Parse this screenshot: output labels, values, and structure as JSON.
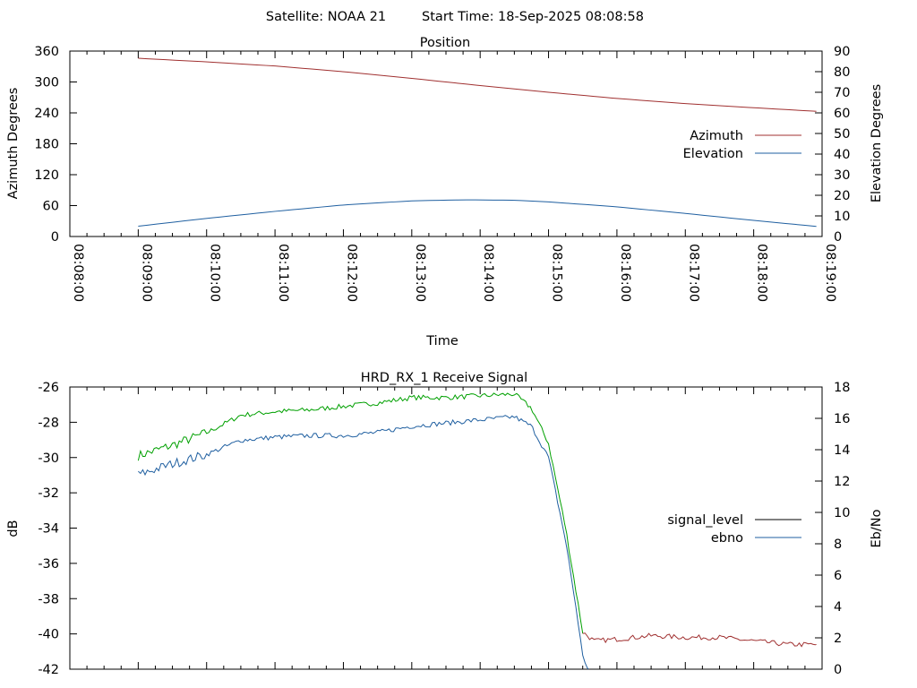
{
  "header": {
    "satellite": "Satellite: NOAA 21",
    "start_time": "Start Time: 18-Sep-2025 08:08:58"
  },
  "chart_data": [
    {
      "type": "line",
      "title": "Position",
      "xlabel": "Time",
      "ylabel": "Azimuth Degrees",
      "y2label": "Elevation Degrees",
      "xlim": [
        "08:08:00",
        "08:19:00"
      ],
      "ylim": [
        0,
        360
      ],
      "y2lim": [
        0,
        90
      ],
      "xticks": [
        "08:08:00",
        "08:09:00",
        "08:10:00",
        "08:11:00",
        "08:12:00",
        "08:13:00",
        "08:14:00",
        "08:15:00",
        "08:16:00",
        "08:17:00",
        "08:18:00",
        "08:19:00"
      ],
      "yticks": [
        "0",
        "60",
        "120",
        "180",
        "240",
        "300",
        "360"
      ],
      "y2ticks": [
        "0",
        "10",
        "20",
        "30",
        "40",
        "50",
        "60",
        "70",
        "80",
        "90"
      ],
      "legend_position": "right",
      "series": [
        {
          "name": "Azimuth",
          "axis": "y",
          "color": "#a03030",
          "x": [
            "08:09:00",
            "08:10:00",
            "08:11:00",
            "08:12:00",
            "08:13:00",
            "08:14:00",
            "08:15:00",
            "08:16:00",
            "08:17:00",
            "08:18:00",
            "08:18:55"
          ],
          "values": [
            346,
            339,
            331,
            320,
            307,
            293,
            280,
            268,
            258,
            250,
            243
          ]
        },
        {
          "name": "Elevation",
          "axis": "y2",
          "color": "#1f5fa0",
          "x": [
            "08:09:00",
            "08:10:00",
            "08:11:00",
            "08:12:00",
            "08:13:00",
            "08:13:45",
            "08:14:30",
            "08:15:00",
            "08:16:00",
            "08:17:00",
            "08:18:00",
            "08:18:55"
          ],
          "values": [
            5,
            8.8,
            12.2,
            15.3,
            17.3,
            17.8,
            17.6,
            16.8,
            14.4,
            11.2,
            7.8,
            4.9
          ]
        }
      ]
    },
    {
      "type": "line",
      "title": "HRD_RX_1 Receive Signal",
      "ylabel": "dB",
      "y2label": "Eb/No",
      "xlim": [
        "08:08:00",
        "08:19:00"
      ],
      "ylim": [
        -42,
        -26
      ],
      "y2lim": [
        0,
        18
      ],
      "yticks": [
        "-42",
        "-40",
        "-38",
        "-36",
        "-34",
        "-32",
        "-30",
        "-28",
        "-26"
      ],
      "y2ticks": [
        "0",
        "2",
        "4",
        "6",
        "8",
        "10",
        "12",
        "14",
        "16",
        "18"
      ],
      "legend_position": "right",
      "series": [
        {
          "name": "signal_level",
          "axis": "y",
          "color": "#00a000",
          "color_low": "#a03030",
          "x": [
            "08:09:00",
            "08:09:30",
            "08:10:00",
            "08:10:30",
            "08:11:00",
            "08:11:30",
            "08:12:00",
            "08:12:30",
            "08:13:00",
            "08:13:30",
            "08:14:00",
            "08:14:30",
            "08:14:45",
            "08:15:00",
            "08:15:15",
            "08:15:30",
            "08:15:40",
            "08:16:00",
            "08:16:30",
            "08:17:00",
            "08:17:30",
            "08:18:00",
            "08:18:30",
            "08:18:55"
          ],
          "values": [
            -29.9,
            -29.3,
            -28.6,
            -27.6,
            -27.4,
            -27.3,
            -27.1,
            -26.9,
            -26.6,
            -26.6,
            -26.5,
            -26.4,
            -27.2,
            -29.2,
            -34.0,
            -39.9,
            -40.4,
            -40.3,
            -40.1,
            -40.2,
            -40.2,
            -40.4,
            -40.6,
            -40.6
          ]
        },
        {
          "name": "ebno",
          "axis": "y2",
          "color": "#1f5fa0",
          "x": [
            "08:09:00",
            "08:09:30",
            "08:10:00",
            "08:10:30",
            "08:11:00",
            "08:11:30",
            "08:12:00",
            "08:12:30",
            "08:13:00",
            "08:13:30",
            "08:14:00",
            "08:14:30",
            "08:14:45",
            "08:15:00",
            "08:15:15",
            "08:15:25",
            "08:15:30",
            "08:15:35"
          ],
          "values": [
            12.4,
            13.1,
            13.7,
            14.6,
            14.8,
            14.9,
            14.9,
            15.1,
            15.5,
            15.7,
            15.9,
            16.1,
            15.5,
            13.5,
            8.2,
            3.5,
            0.8,
            0
          ]
        }
      ]
    }
  ]
}
